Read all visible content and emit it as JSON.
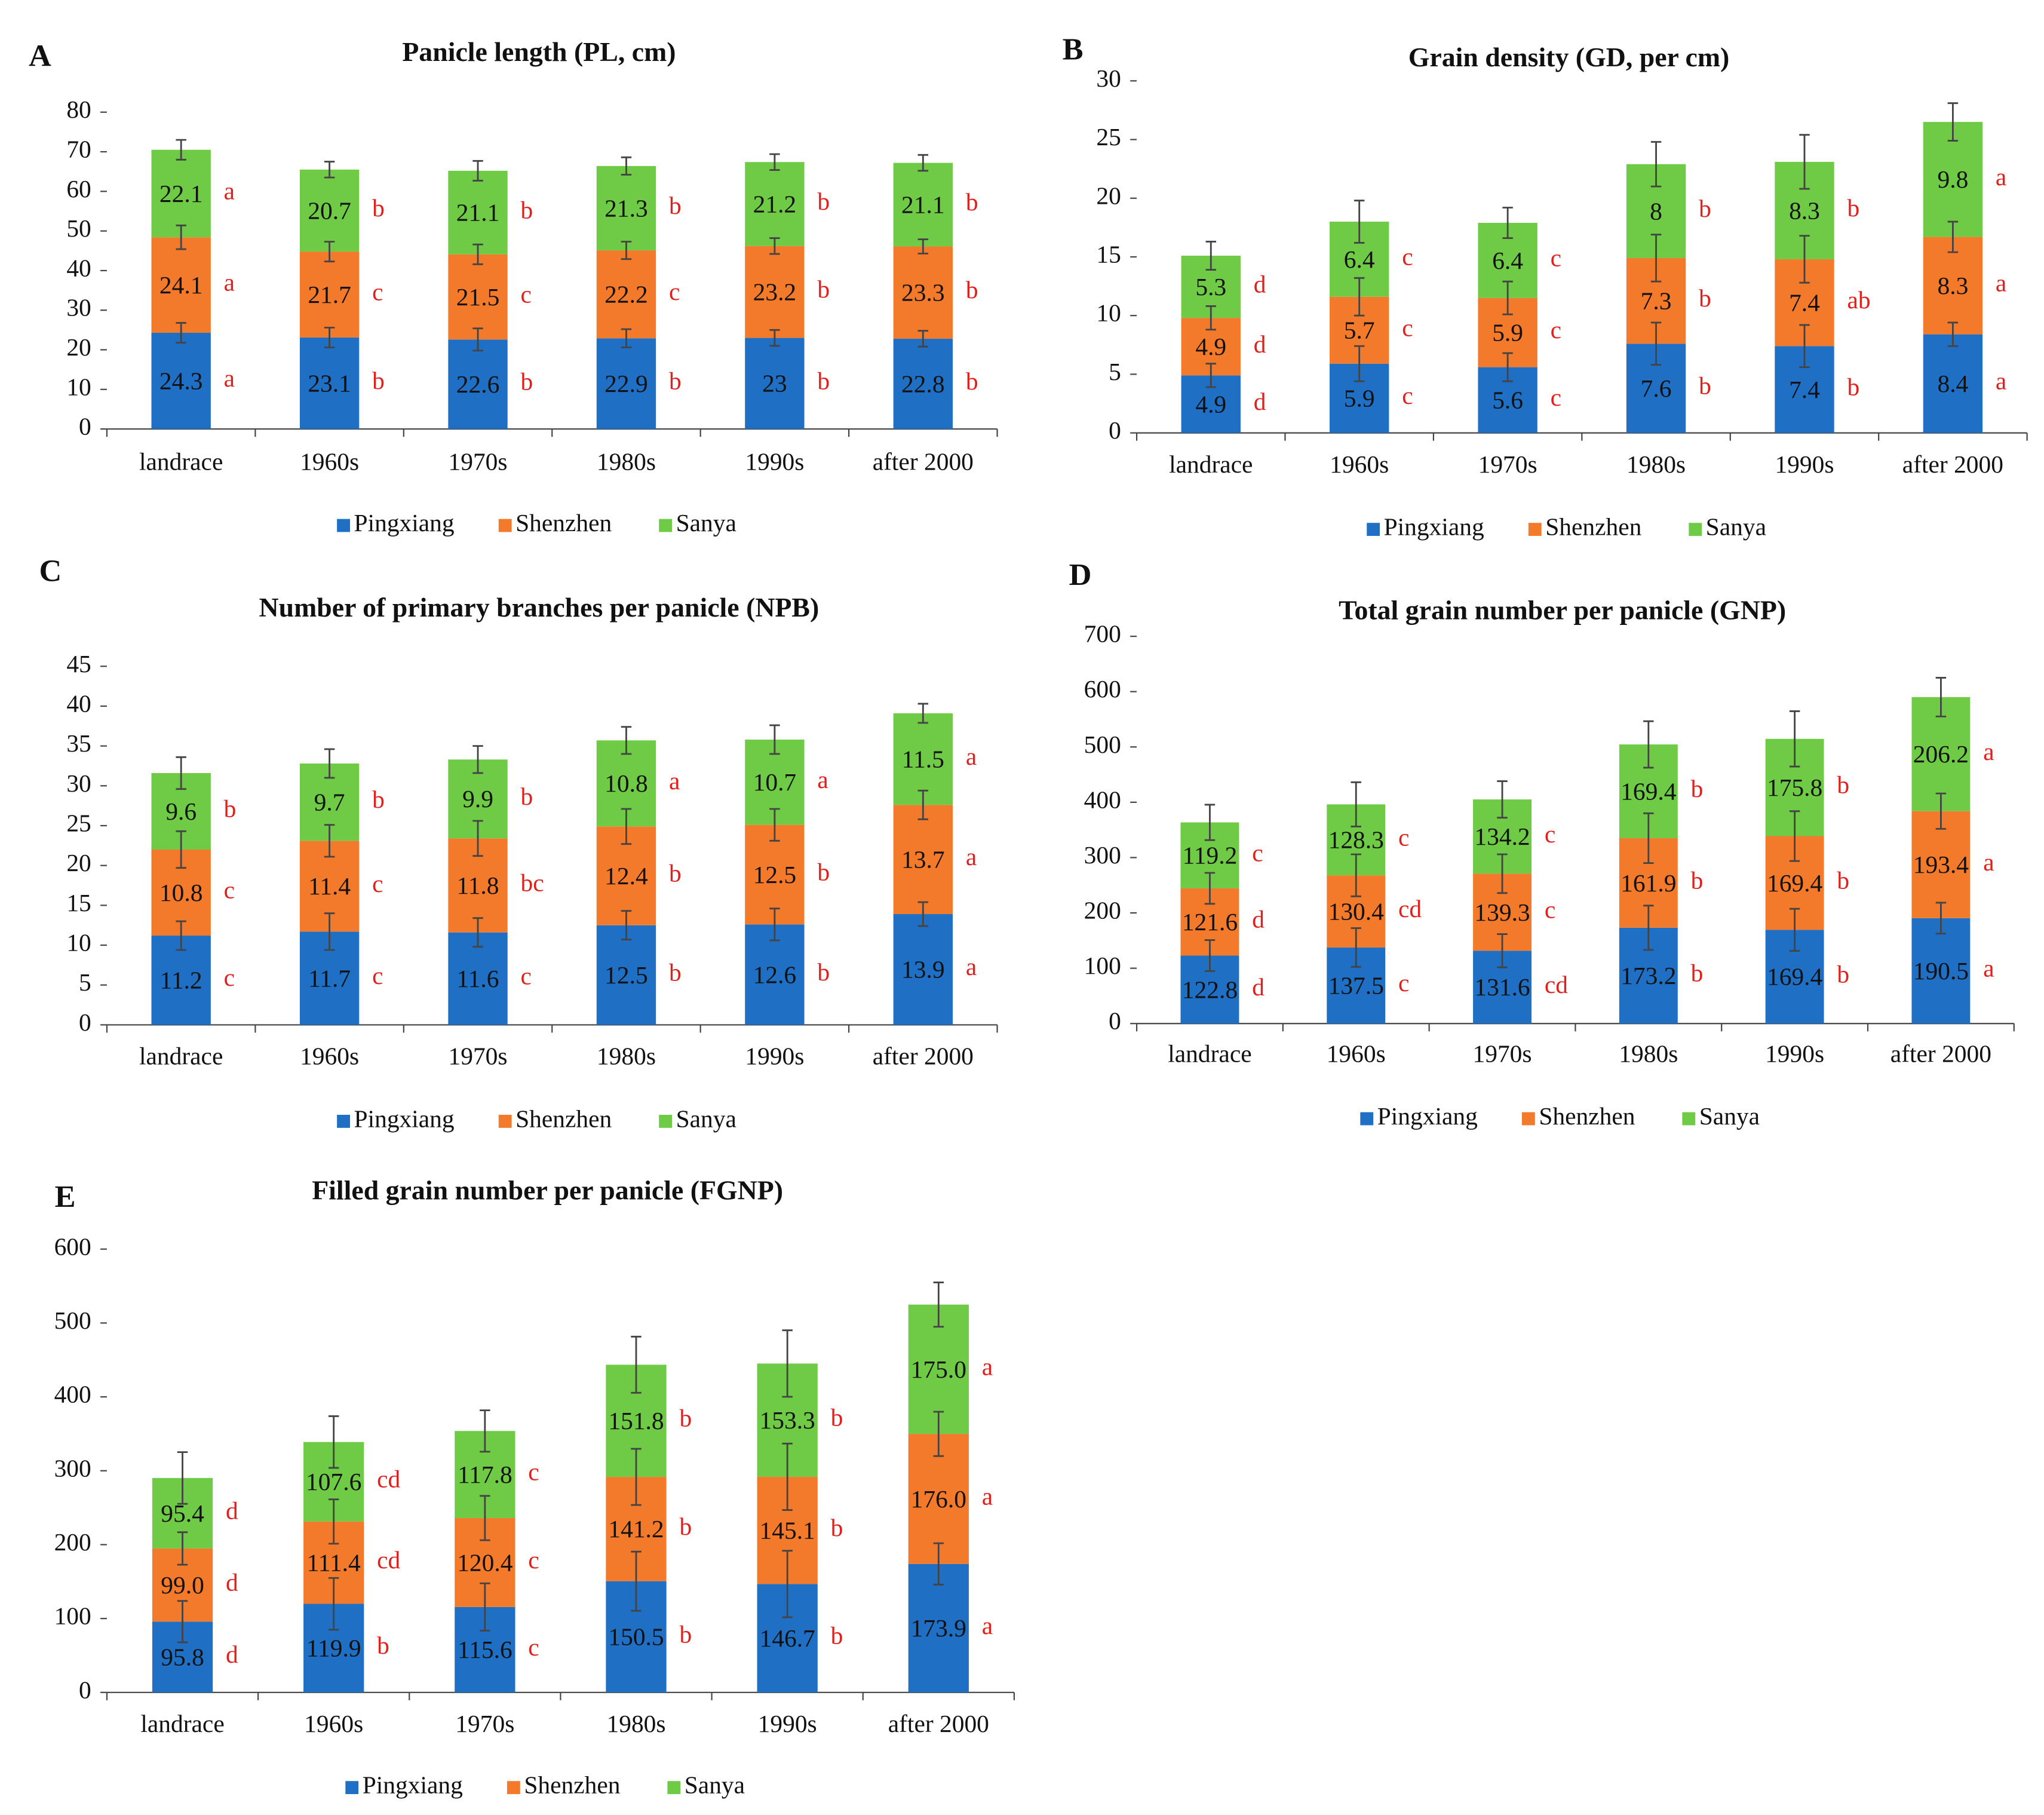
{
  "chart_data": [
    {
      "type": "bar",
      "stacked": true,
      "panel": "A",
      "title": "Panicle length (PL, cm)",
      "categories": [
        "landrace",
        "1960s",
        "1970s",
        "1980s",
        "1990s",
        "after 2000"
      ],
      "ylim": [
        0,
        80
      ],
      "yticks": [
        0,
        10,
        20,
        30,
        40,
        50,
        60,
        70,
        80
      ],
      "series": [
        {
          "name": "Pingxiang",
          "color": "#1f6fc5",
          "values": [
            24.3,
            23.1,
            22.6,
            22.9,
            23,
            22.8
          ],
          "errors": [
            2.5,
            2.5,
            2.8,
            2.3,
            2,
            2
          ],
          "letters": [
            "a",
            "b",
            "b",
            "b",
            "b",
            "b"
          ]
        },
        {
          "name": "Shenzhen",
          "color": "#f47a2b",
          "values": [
            24.1,
            21.7,
            21.5,
            22.2,
            23.2,
            23.3
          ],
          "errors": [
            3,
            2.5,
            2.5,
            2.2,
            2,
            1.8
          ],
          "letters": [
            "a",
            "c",
            "c",
            "c",
            "b",
            "b"
          ]
        },
        {
          "name": "Sanya",
          "color": "#6fca45",
          "values": [
            22.1,
            20.7,
            21.1,
            21.3,
            21.2,
            21.1
          ],
          "errors": [
            2.5,
            2,
            2.5,
            2.2,
            2,
            2
          ],
          "letters": [
            "a",
            "b",
            "b",
            "b",
            "b",
            "b"
          ]
        }
      ]
    },
    {
      "type": "bar",
      "stacked": true,
      "panel": "B",
      "title": "Grain density (GD, per cm)",
      "categories": [
        "landrace",
        "1960s",
        "1970s",
        "1980s",
        "1990s",
        "after 2000"
      ],
      "ylim": [
        0,
        30
      ],
      "yticks": [
        0,
        5,
        10,
        15,
        20,
        25,
        30
      ],
      "series": [
        {
          "name": "Pingxiang",
          "color": "#1f6fc5",
          "values": [
            4.9,
            5.9,
            5.6,
            7.6,
            7.4,
            8.4
          ],
          "errors": [
            1,
            1.5,
            1.2,
            1.8,
            1.8,
            1
          ],
          "letters": [
            "d",
            "c",
            "c",
            "b",
            "b",
            "a"
          ]
        },
        {
          "name": "Shenzhen",
          "color": "#f47a2b",
          "values": [
            4.9,
            5.7,
            5.9,
            7.3,
            7.4,
            8.3
          ],
          "errors": [
            1,
            1.6,
            1.4,
            2,
            2,
            1.3
          ],
          "letters": [
            "d",
            "c",
            "c",
            "b",
            "ab",
            "a"
          ]
        },
        {
          "name": "Sanya",
          "color": "#6fca45",
          "values": [
            5.3,
            6.4,
            6.4,
            8,
            8.3,
            9.8
          ],
          "errors": [
            1.2,
            1.8,
            1.3,
            1.9,
            2.3,
            1.6
          ],
          "letters": [
            "d",
            "c",
            "c",
            "b",
            "b",
            "a"
          ]
        }
      ]
    },
    {
      "type": "bar",
      "stacked": true,
      "panel": "C",
      "title": "Number of primary branches per panicle (NPB)",
      "categories": [
        "landrace",
        "1960s",
        "1970s",
        "1980s",
        "1990s",
        "after 2000"
      ],
      "ylim": [
        0,
        45
      ],
      "yticks": [
        0,
        5,
        10,
        15,
        20,
        25,
        30,
        35,
        40,
        45
      ],
      "series": [
        {
          "name": "Pingxiang",
          "color": "#1f6fc5",
          "values": [
            11.2,
            11.7,
            11.6,
            12.5,
            12.6,
            13.9
          ],
          "errors": [
            1.8,
            2.3,
            1.8,
            1.8,
            2,
            1.5
          ],
          "letters": [
            "c",
            "c",
            "c",
            "b",
            "b",
            "a"
          ]
        },
        {
          "name": "Shenzhen",
          "color": "#f47a2b",
          "values": [
            10.8,
            11.4,
            11.8,
            12.4,
            12.5,
            13.7
          ],
          "errors": [
            2.3,
            2,
            2.2,
            2.2,
            2,
            1.8
          ],
          "letters": [
            "c",
            "c",
            "bc",
            "b",
            "b",
            "a"
          ]
        },
        {
          "name": "Sanya",
          "color": "#6fca45",
          "values": [
            9.6,
            9.7,
            9.9,
            10.8,
            10.7,
            11.5
          ],
          "errors": [
            2,
            1.8,
            1.7,
            1.7,
            1.8,
            1.2
          ],
          "letters": [
            "b",
            "b",
            "b",
            "a",
            "a",
            "a"
          ]
        }
      ]
    },
    {
      "type": "bar",
      "stacked": true,
      "panel": "D",
      "title": "Total grain number per panicle (GNP)",
      "categories": [
        "landrace",
        "1960s",
        "1970s",
        "1980s",
        "1990s",
        "after 2000"
      ],
      "ylim": [
        0,
        700
      ],
      "yticks": [
        0,
        100,
        200,
        300,
        400,
        500,
        600,
        700
      ],
      "series": [
        {
          "name": "Pingxiang",
          "color": "#1f6fc5",
          "values": [
            122.8,
            137.5,
            131.6,
            173.2,
            169.4,
            190.5
          ],
          "errors": [
            28,
            35,
            30,
            40,
            38,
            28
          ],
          "letters": [
            "d",
            "c",
            "cd",
            "b",
            "b",
            "a"
          ]
        },
        {
          "name": "Shenzhen",
          "color": "#f47a2b",
          "values": [
            121.6,
            130.4,
            139.3,
            161.9,
            169.4,
            193.4
          ],
          "errors": [
            28,
            38,
            35,
            45,
            45,
            32
          ],
          "letters": [
            "d",
            "cd",
            "c",
            "b",
            "b",
            "a"
          ]
        },
        {
          "name": "Sanya",
          "color": "#6fca45",
          "values": [
            119.2,
            128.3,
            134.2,
            169.4,
            175.8,
            206.2
          ],
          "errors": [
            32,
            40,
            33,
            42,
            50,
            35
          ],
          "letters": [
            "c",
            "c",
            "c",
            "b",
            "b",
            "a"
          ]
        }
      ]
    },
    {
      "type": "bar",
      "stacked": true,
      "panel": "E",
      "title": "Filled grain number per panicle (FGNP)",
      "categories": [
        "landrace",
        "1960s",
        "1970s",
        "1980s",
        "1990s",
        "after 2000"
      ],
      "ylim": [
        0,
        600
      ],
      "yticks": [
        0,
        100,
        200,
        300,
        400,
        500,
        600
      ],
      "series": [
        {
          "name": "Pingxiang",
          "color": "#1f6fc5",
          "values": [
            95.8,
            119.9,
            115.6,
            150.5,
            146.7,
            173.9
          ],
          "value_labels": [
            "95.8",
            "119.9",
            "115.6",
            "150.5",
            "146.7",
            "173.9"
          ],
          "errors": [
            28,
            35,
            32,
            40,
            45,
            28
          ],
          "letters": [
            "d",
            "b",
            "c",
            "b",
            "b",
            "a"
          ]
        },
        {
          "name": "Shenzhen",
          "color": "#f47a2b",
          "values": [
            99,
            111.4,
            120.4,
            141.2,
            145.1,
            176
          ],
          "value_labels": [
            "99.0",
            "111.4",
            "120.4",
            "141.2",
            "145.1",
            "176.0"
          ],
          "errors": [
            22,
            30,
            30,
            38,
            45,
            30
          ],
          "letters": [
            "d",
            "cd",
            "c",
            "b",
            "b",
            "a"
          ]
        },
        {
          "name": "Sanya",
          "color": "#6fca45",
          "values": [
            95.4,
            107.6,
            117.8,
            151.8,
            153.3,
            175
          ],
          "value_labels": [
            "95.4",
            "107.6",
            "117.8",
            "151.8",
            "153.3",
            "175.0"
          ],
          "errors": [
            35,
            35,
            28,
            38,
            45,
            30
          ],
          "letters": [
            "d",
            "cd",
            "c",
            "b",
            "b",
            "a"
          ]
        }
      ]
    }
  ]
}
